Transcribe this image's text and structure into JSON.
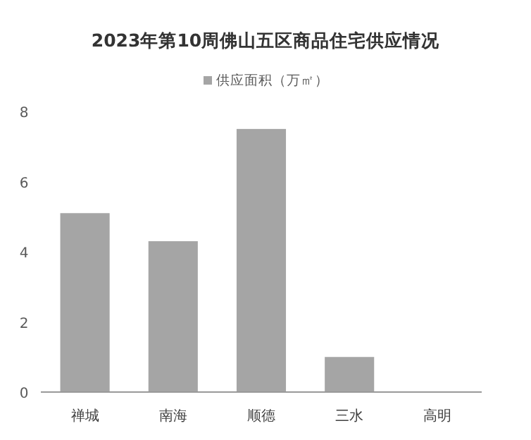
{
  "chart_data": {
    "type": "bar",
    "title": "2023年第10周佛山五区商品住宅供应情况",
    "categories": [
      "禅城",
      "南海",
      "顺德",
      "三水",
      "高明"
    ],
    "series": [
      {
        "name": "供应面积（万㎡）",
        "color": "#a5a5a5",
        "values": [
          5.1,
          4.3,
          7.5,
          1.0,
          0
        ]
      }
    ],
    "ylim": [
      0,
      8
    ],
    "yticks": [
      0,
      2,
      4,
      6,
      8
    ],
    "grid": false,
    "legend": "top"
  }
}
